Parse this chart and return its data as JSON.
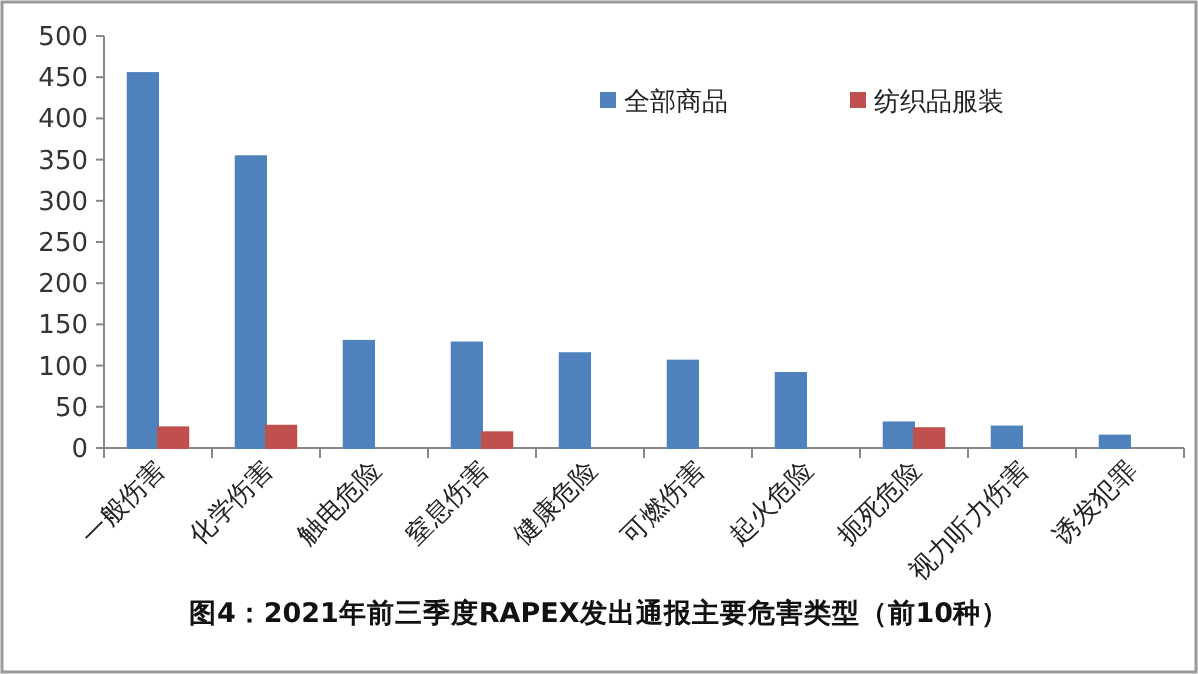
{
  "chart_data": {
    "type": "bar",
    "title": "图4：2021年前三季度RAPEX发出通报主要危害类型（前10种）",
    "categories": [
      "一般伤害",
      "化学伤害",
      "触电危险",
      "窒息伤害",
      "健康危险",
      "可燃伤害",
      "起火危险",
      "扼死危险",
      "视力听力伤害",
      "诱发犯罪"
    ],
    "series": [
      {
        "name": "全部商品",
        "color": "#4f81bd",
        "values": [
          455,
          354,
          130,
          128,
          115,
          106,
          91,
          31,
          26,
          15
        ]
      },
      {
        "name": "纺织品服装",
        "color": "#c0504d",
        "values": [
          25,
          27,
          null,
          19,
          null,
          null,
          null,
          24,
          null,
          null
        ]
      }
    ],
    "ylim": [
      0,
      500
    ],
    "yticks": [
      0,
      50,
      100,
      150,
      200,
      250,
      300,
      350,
      400,
      450,
      500
    ],
    "legend": "top right"
  }
}
